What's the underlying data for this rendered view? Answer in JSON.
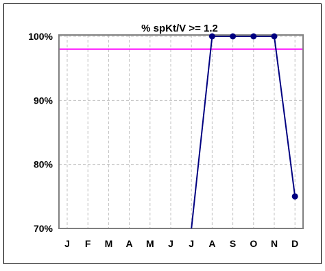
{
  "chart_data": {
    "type": "line",
    "title": "% spKt/V >= 1.2",
    "xlabel": "",
    "ylabel": "",
    "categories": [
      "J",
      "F",
      "M",
      "A",
      "M",
      "J",
      "J",
      "A",
      "S",
      "O",
      "N",
      "D"
    ],
    "ylim": [
      70,
      100
    ],
    "yticks": [
      {
        "value": 100,
        "label": "100%"
      },
      {
        "value": 90,
        "label": "90%"
      },
      {
        "value": 80,
        "label": "80%"
      },
      {
        "value": 70,
        "label": "70%"
      }
    ],
    "series": [
      {
        "values": [
          null,
          null,
          null,
          null,
          null,
          null,
          60,
          100,
          100,
          100,
          100,
          75
        ],
        "marker_start_index": 7,
        "color": "#000080"
      }
    ],
    "reference_line": {
      "value": 98,
      "color": "#ff00ff"
    },
    "grid": {
      "vertical": true,
      "horizontal": true,
      "style": "dashed",
      "color": "#c0c0c0"
    },
    "legend": "none"
  },
  "colors": {
    "plot_border": "#808080",
    "outer_border": "#000000",
    "series": "#000080",
    "reference": "#ff00ff"
  }
}
